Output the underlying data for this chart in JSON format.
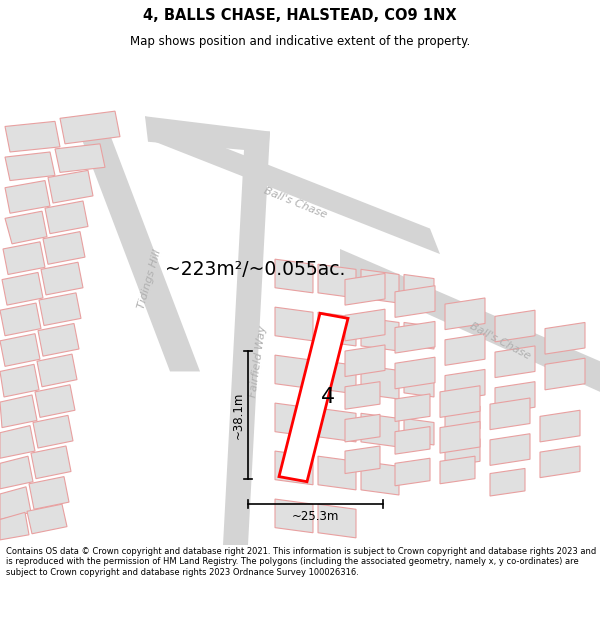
{
  "title": "4, BALLS CHASE, HALSTEAD, CO9 1NX",
  "subtitle": "Map shows position and indicative extent of the property.",
  "footer": "Contains OS data © Crown copyright and database right 2021. This information is subject to Crown copyright and database rights 2023 and is reproduced with the permission of HM Land Registry. The polygons (including the associated geometry, namely x, y co-ordinates) are subject to Crown copyright and database rights 2023 Ordnance Survey 100026316.",
  "area_label": "~223m²/~0.055ac.",
  "width_label": "~25.3m",
  "height_label": "~38.1m",
  "plot_number": "4",
  "building_color": "#e0e0e0",
  "building_outline": "#e8a0a0",
  "road_color": "#d4d4d4",
  "highlight_color": "#ff0000",
  "road_label_color": "#b0b0b0",
  "text_color": "#000000",
  "dim_line_color": "#000000"
}
